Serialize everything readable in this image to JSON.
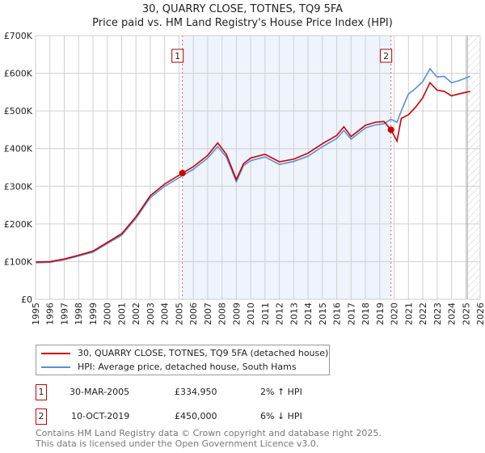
{
  "title": "30, QUARRY CLOSE, TOTNES, TQ9 5FA",
  "subtitle": "Price paid vs. HM Land Registry's House Price Index (HPI)",
  "chart_data": {
    "type": "line",
    "title": "30, QUARRY CLOSE, TOTNES, TQ9 5FA",
    "subtitle": "Price paid vs. HM Land Registry's House Price Index (HPI)",
    "xlim": [
      1995,
      2026
    ],
    "ylim": [
      0,
      700000
    ],
    "x_ticks": [
      "1995",
      "1996",
      "1997",
      "1998",
      "1999",
      "2000",
      "2001",
      "2002",
      "2003",
      "2004",
      "2005",
      "2006",
      "2007",
      "2008",
      "2009",
      "2010",
      "2011",
      "2012",
      "2013",
      "2014",
      "2015",
      "2016",
      "2017",
      "2018",
      "2019",
      "2020",
      "2021",
      "2022",
      "2023",
      "2024",
      "2025",
      "2026"
    ],
    "y_ticks": [
      {
        "v": 0,
        "label": "£0"
      },
      {
        "v": 100000,
        "label": "£100K"
      },
      {
        "v": 200000,
        "label": "£200K"
      },
      {
        "v": 300000,
        "label": "£300K"
      },
      {
        "v": 400000,
        "label": "£400K"
      },
      {
        "v": 500000,
        "label": "£500K"
      },
      {
        "v": 600000,
        "label": "£600K"
      },
      {
        "v": 700000,
        "label": "£700K"
      }
    ],
    "grid": true,
    "series": [
      {
        "name": "30, QUARRY CLOSE, TOTNES, TQ9 5FA (detached house)",
        "color": "#cc0000",
        "x": [
          1995,
          1996,
          1997,
          1998,
          1999,
          2000,
          2001,
          2002,
          2003,
          2004,
          2005.24,
          2006,
          2007,
          2007.7,
          2008.3,
          2009,
          2009.5,
          2010,
          2011,
          2012,
          2013,
          2014,
          2015,
          2016,
          2016.5,
          2017,
          2018,
          2018.7,
          2019.3,
          2019.78,
          2020.2,
          2020.5,
          2021,
          2021.5,
          2022,
          2022.5,
          2023,
          2023.5,
          2024,
          2024.5,
          2025.3
        ],
        "y": [
          99000,
          100000,
          107000,
          117000,
          128000,
          151000,
          174000,
          219000,
          275000,
          306000,
          334950,
          352000,
          382000,
          415000,
          385000,
          318000,
          360000,
          375000,
          385000,
          365000,
          372000,
          388000,
          413000,
          435000,
          458000,
          432000,
          462000,
          470000,
          472000,
          450000,
          420000,
          480000,
          490000,
          510000,
          535000,
          575000,
          555000,
          552000,
          540000,
          545000,
          552000
        ]
      },
      {
        "name": "HPI: Average price, detached house, South Hams",
        "color": "#5b8fd6",
        "x": [
          1995,
          1996,
          1997,
          1998,
          1999,
          2000,
          2001,
          2002,
          2003,
          2004,
          2005.24,
          2006,
          2007,
          2007.7,
          2008.3,
          2009,
          2009.5,
          2010,
          2011,
          2012,
          2013,
          2014,
          2015,
          2016,
          2016.5,
          2017,
          2018,
          2018.7,
          2019.3,
          2019.78,
          2020.2,
          2020.5,
          2021,
          2021.5,
          2022,
          2022.5,
          2023,
          2023.5,
          2024,
          2024.5,
          2025.3
        ],
        "y": [
          97000,
          98000,
          105000,
          115000,
          125000,
          148000,
          170000,
          215000,
          270000,
          300000,
          328000,
          345000,
          375000,
          405000,
          378000,
          312000,
          355000,
          368000,
          378000,
          358000,
          366000,
          380000,
          405000,
          427000,
          448000,
          425000,
          455000,
          463000,
          466000,
          478000,
          470000,
          500000,
          545000,
          560000,
          578000,
          612000,
          590000,
          592000,
          575000,
          580000,
          592000
        ]
      }
    ],
    "annotations": [
      {
        "label": "1",
        "x": 2005.24,
        "y": 334950
      },
      {
        "label": "2",
        "x": 2019.78,
        "y": 450000
      }
    ],
    "legend": "bottom"
  },
  "legend": [
    {
      "label": "30, QUARRY CLOSE, TOTNES, TQ9 5FA (detached house)",
      "color": "#cc0000"
    },
    {
      "label": "HPI: Average price, detached house, South Hams",
      "color": "#5b8fd6"
    }
  ],
  "transactions": [
    {
      "num": "1",
      "date": "30-MAR-2005",
      "price": "£334,950",
      "hpi": "2% ↑ HPI"
    },
    {
      "num": "2",
      "date": "10-OCT-2019",
      "price": "£450,000",
      "hpi": "6% ↓ HPI"
    }
  ],
  "footer": [
    "Contains HM Land Registry data © Crown copyright and database right 2025.",
    "This data is licensed under the Open Government Licence v3.0."
  ]
}
